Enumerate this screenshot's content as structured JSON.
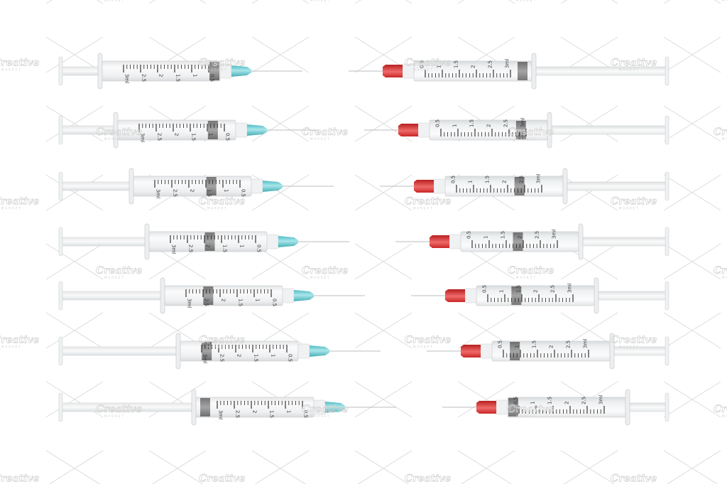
{
  "watermark": {
    "brand": "Creative",
    "sub": "MARKET"
  },
  "scale_labels": [
    "3ml",
    "2.5",
    "2",
    "1.5",
    "1",
    "0.5"
  ],
  "colors": {
    "left_needle_hub": "#7fd3d8",
    "right_cap": "#e03a3a",
    "stopper": "#8c8c8c",
    "barrel": "#f2f3f4",
    "background": "#ffffff"
  },
  "left_column": {
    "needle_hub": "blue",
    "plunger_fill_fractions": [
      0,
      0.1667,
      0.3333,
      0.5,
      0.6667,
      0.8333,
      1
    ]
  },
  "right_column": {
    "needle_hub": "red-cap",
    "plunger_fill_fractions": [
      1,
      0.8333,
      0.6667,
      0.5,
      0.3333,
      0.1667,
      0
    ]
  }
}
